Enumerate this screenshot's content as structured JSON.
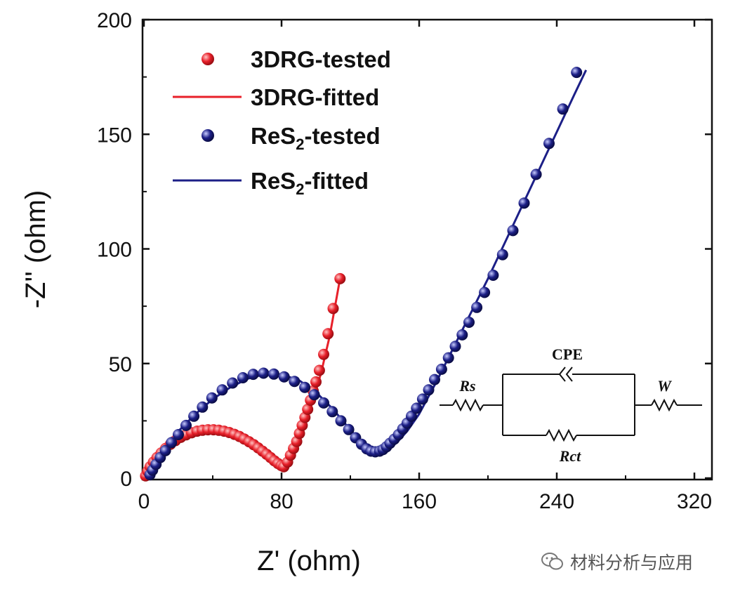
{
  "chart_data": {
    "type": "scatter",
    "title": "",
    "xlabel": "Z' (ohm)",
    "ylabel": "-Z'' (ohm)",
    "xlim": [
      0,
      330
    ],
    "ylim": [
      0,
      200
    ],
    "xticks": [
      0,
      80,
      160,
      240,
      320
    ],
    "yticks": [
      0,
      50,
      100,
      150,
      200
    ],
    "legend_position": "top-left",
    "series": [
      {
        "name": "3DRG-tested",
        "legend_main": "3DRG-tested",
        "legend_sub": "",
        "legend_tail": "",
        "style": "markers",
        "color": "#e8202a",
        "x": [
          1.0,
          2.2,
          3.6,
          5.5,
          7.6,
          10.0,
          12.6,
          15.4,
          18.3,
          21.4,
          24.5,
          27.7,
          30.9,
          34.0,
          37.2,
          40.4,
          43.5,
          46.6,
          49.6,
          52.6,
          55.5,
          58.3,
          61.1,
          63.8,
          66.4,
          68.9,
          71.3,
          73.6,
          75.8,
          77.9,
          79.8,
          81.3,
          83.5,
          85.2,
          87.0,
          88.8,
          90.4,
          92.0,
          93.6,
          95.2,
          96.8,
          98.4,
          100.0,
          102.0,
          104.5,
          107.0,
          110.0,
          114.0
        ],
        "y": [
          1.0,
          3.0,
          5.0,
          7.0,
          9.0,
          11.0,
          13.0,
          14.8,
          16.4,
          17.8,
          18.9,
          19.8,
          20.5,
          20.9,
          21.1,
          21.1,
          20.9,
          20.5,
          19.9,
          19.1,
          18.2,
          17.1,
          15.9,
          14.6,
          13.2,
          11.8,
          10.4,
          9.0,
          7.6,
          6.4,
          5.5,
          5.0,
          7.0,
          10.0,
          13.0,
          16.0,
          19.5,
          23.0,
          26.5,
          30.0,
          34.0,
          38.0,
          42.0,
          47.0,
          54.0,
          63.0,
          74.0,
          87.0
        ]
      },
      {
        "name": "3DRG-fitted",
        "legend_main": "3DRG-fitted",
        "legend_sub": "",
        "legend_tail": "",
        "style": "line",
        "color": "#e8202a",
        "x": [
          0.5,
          3,
          8,
          15,
          25,
          35,
          42,
          50,
          60,
          68,
          75,
          80,
          83,
          88,
          93,
          98,
          103,
          108,
          114
        ],
        "y": [
          0,
          5,
          10,
          15,
          19,
          21,
          21.1,
          20.3,
          17.5,
          13.5,
          8.5,
          5,
          6.5,
          14,
          22.5,
          33,
          46,
          62,
          87
        ]
      },
      {
        "name": "ReS2-tested",
        "legend_main": "ReS",
        "legend_sub": "2",
        "legend_tail": "-tested",
        "style": "markers",
        "color": "#1c1f87",
        "x": [
          3.5,
          5.0,
          7.0,
          9.5,
          12.5,
          16.0,
          20.0,
          24.5,
          29.0,
          34.0,
          39.5,
          45.5,
          51.5,
          57.5,
          63.5,
          69.5,
          75.5,
          81.5,
          87.5,
          93.5,
          99.0,
          104.5,
          109.5,
          114.5,
          119.0,
          123.0,
          126.5,
          129.5,
          132.0,
          134.5,
          137.0,
          139.0,
          141.0,
          143.0,
          145.5,
          148.0,
          150.5,
          153.0,
          155.5,
          158.5,
          162.0,
          165.5,
          169.0,
          173.0,
          177.0,
          181.0,
          185.0,
          189.0,
          193.5,
          198.0,
          203.0,
          208.5,
          214.5,
          221.0,
          228.0,
          235.5,
          243.5,
          251.5
        ],
        "y": [
          1.5,
          3.5,
          6.0,
          9.0,
          12.0,
          15.5,
          19.0,
          23.0,
          27.0,
          31.0,
          35.0,
          38.5,
          41.5,
          43.8,
          45.3,
          45.8,
          45.4,
          44.2,
          42.2,
          39.6,
          36.4,
          32.8,
          29.0,
          25.0,
          21.2,
          17.6,
          14.8,
          12.8,
          11.8,
          11.5,
          11.8,
          12.5,
          13.7,
          15.2,
          17.0,
          19.0,
          21.5,
          24.0,
          27.0,
          30.5,
          34.5,
          38.5,
          43.0,
          47.5,
          52.5,
          57.5,
          62.5,
          68.0,
          74.5,
          81.0,
          88.5,
          97.5,
          108.0,
          120.0,
          132.5,
          146.0,
          161.0,
          177.0
        ]
      },
      {
        "name": "ReS2-fitted",
        "legend_main": "ReS",
        "legend_sub": "2",
        "legend_tail": "-fitted",
        "style": "line",
        "color": "#1c1f87",
        "x": [
          3.0,
          6,
          12,
          20,
          30,
          40,
          50,
          60,
          70,
          80,
          90,
          100,
          110,
          120,
          128,
          134,
          138,
          142,
          147,
          153,
          160,
          170,
          180,
          190,
          200,
          210,
          220,
          230,
          240,
          250,
          257
        ],
        "y": [
          0,
          6,
          13,
          20.5,
          28,
          34.5,
          39.5,
          43.3,
          45.3,
          45.2,
          42.8,
          37.5,
          30,
          21,
          14.5,
          11.8,
          11.6,
          12.6,
          15.5,
          20.5,
          28,
          42,
          57,
          72,
          87,
          103,
          119,
          135,
          151,
          167,
          178
        ]
      }
    ]
  },
  "circuit": {
    "label_cpe": "CPE",
    "label_rs": "Rs",
    "label_rct": "Rct",
    "label_w": "W"
  },
  "watermark": {
    "text": "材料分析与应用"
  }
}
